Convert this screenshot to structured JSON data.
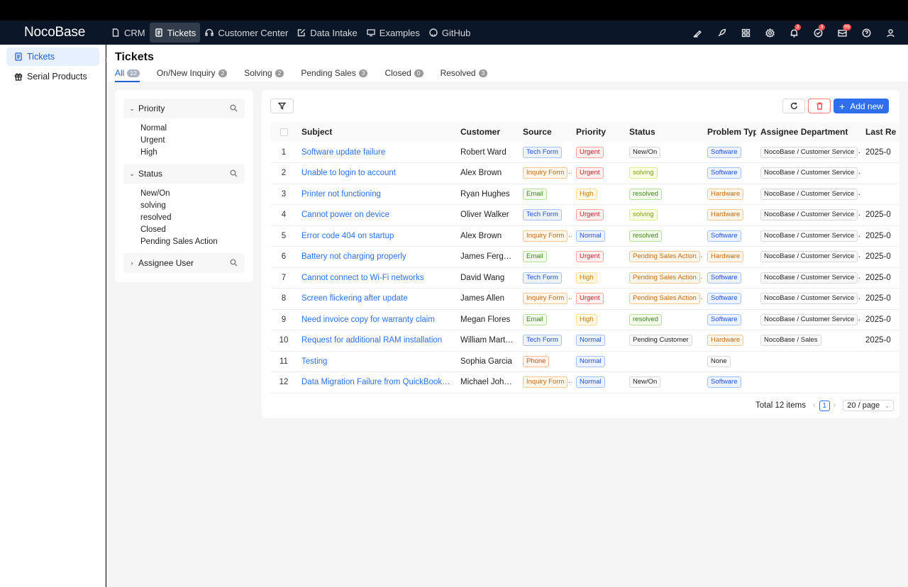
{
  "app": {
    "logo": "NocoBase"
  },
  "topnav": {
    "items": [
      {
        "label": "CRM",
        "icon": "file-icon"
      },
      {
        "label": "Tickets",
        "icon": "file-text-icon",
        "active": true
      },
      {
        "label": "Customer Center",
        "icon": "headset-icon"
      },
      {
        "label": "Data Intake",
        "icon": "edit-icon"
      },
      {
        "label": "Examples",
        "icon": "desktop-icon"
      },
      {
        "label": "GitHub",
        "icon": "github-icon"
      }
    ],
    "right_icons": [
      {
        "name": "highlight-icon"
      },
      {
        "name": "rocket-icon"
      },
      {
        "name": "apps-icon"
      },
      {
        "name": "settings-icon"
      },
      {
        "name": "bell-icon",
        "badge": "3"
      },
      {
        "name": "check-circle-icon",
        "badge": "3"
      },
      {
        "name": "mail-icon",
        "badge": "99"
      },
      {
        "name": "help-icon"
      },
      {
        "name": "user-icon"
      }
    ]
  },
  "sidebar": {
    "items": [
      {
        "label": "Tickets",
        "icon": "file-text-icon",
        "active": true
      },
      {
        "label": "Serial Products",
        "icon": "gift-icon"
      }
    ]
  },
  "page": {
    "title": "Tickets",
    "tabs": [
      {
        "label": "All",
        "count": "12",
        "active": true
      },
      {
        "label": "On/New Inquiry",
        "count": "2"
      },
      {
        "label": "Solving",
        "count": "2"
      },
      {
        "label": "Pending Sales",
        "count": "3"
      },
      {
        "label": "Closed",
        "count": "0"
      },
      {
        "label": "Resolved",
        "count": "3"
      }
    ]
  },
  "filters": {
    "groups": [
      {
        "label": "Priority",
        "expanded": true,
        "options": [
          "Normal",
          "Urgent",
          "High"
        ]
      },
      {
        "label": "Status",
        "expanded": true,
        "options": [
          "New/On",
          "solving",
          "resolved",
          "Closed",
          "Pending Sales Action"
        ]
      },
      {
        "label": "Assignee User",
        "expanded": false,
        "options": []
      }
    ]
  },
  "toolbar": {
    "add_label": "Add new"
  },
  "table": {
    "columns": [
      "Subject",
      "Customer",
      "Source",
      "Priority",
      "Status",
      "Problem Type",
      "Assignee Department",
      "Last Re"
    ],
    "rows": [
      {
        "no": "1",
        "subject": "Software update failure",
        "customer": "Robert Ward",
        "source": "Tech Form",
        "priority": "Urgent",
        "status": "New/On",
        "problem": "Software",
        "dept": "NocoBase / Customer Service",
        "last": "2025-0"
      },
      {
        "no": "2",
        "subject": "Unable to login to account",
        "customer": "Alex Brown",
        "source": "Inquiry Form",
        "priority": "Urgent",
        "status": "solving",
        "problem": "Software",
        "dept": "NocoBase / Customer Service",
        "last": ""
      },
      {
        "no": "3",
        "subject": "Printer not functioning",
        "customer": "Ryan Hughes",
        "source": "Email",
        "priority": "High",
        "status": "resolved",
        "problem": "Hardware",
        "dept": "NocoBase / Customer Service",
        "last": ""
      },
      {
        "no": "4",
        "subject": "Cannot power on device",
        "customer": "Oliver Walker",
        "source": "Tech Form",
        "priority": "Urgent",
        "status": "solving",
        "problem": "Hardware",
        "dept": "NocoBase / Customer Service",
        "last": "2025-0"
      },
      {
        "no": "5",
        "subject": "Error code 404 on startup",
        "customer": "Alex Brown",
        "source": "Inquiry Form",
        "priority": "Normal",
        "status": "resolved",
        "problem": "Software",
        "dept": "NocoBase / Customer Service",
        "last": "2025-0"
      },
      {
        "no": "6",
        "subject": "Battery not charging properly",
        "customer": "James Ferguson",
        "source": "Email",
        "priority": "Urgent",
        "status": "Pending Sales Action",
        "problem": "Hardware",
        "dept": "NocoBase / Customer Service",
        "last": "2025-0"
      },
      {
        "no": "7",
        "subject": "Cannot connect to Wi-Fi networks",
        "customer": "David Wang",
        "source": "Tech Form",
        "priority": "High",
        "status": "Pending Sales Action",
        "problem": "Software",
        "dept": "NocoBase / Customer Service",
        "last": "2025-0"
      },
      {
        "no": "8",
        "subject": "Screen flickering after update",
        "customer": "James Allen",
        "source": "Inquiry Form",
        "priority": "Urgent",
        "status": "Pending Sales Action",
        "problem": "Software",
        "dept": "NocoBase / Customer Service",
        "last": "2025-0"
      },
      {
        "no": "9",
        "subject": "Need invoice copy for warranty claim",
        "customer": "Megan Flores",
        "source": "Email",
        "priority": "High",
        "status": "resolved",
        "problem": "Software",
        "dept": "NocoBase / Customer Service",
        "last": "2025-0"
      },
      {
        "no": "10",
        "subject": "Request for additional RAM installation",
        "customer": "William Martinez",
        "source": "Tech Form",
        "priority": "Normal",
        "status": "Pending Customer",
        "problem": "Hardware",
        "dept": "NocoBase / Sales",
        "last": "2025-0"
      },
      {
        "no": "11",
        "subject": "Testing",
        "customer": "Sophia Garcia",
        "source": "Phone",
        "priority": "Normal",
        "status": "",
        "problem": "None",
        "dept": "",
        "last": ""
      },
      {
        "no": "12",
        "subject": "Data Migration Failure from QuickBooks to …",
        "customer": "Michael Johnson",
        "source": "Inquiry Form",
        "priority": "Normal",
        "status": "New/On",
        "problem": "Software",
        "dept": "",
        "last": ""
      }
    ]
  },
  "pagination": {
    "total": "Total 12 items",
    "page": "1",
    "page_size": "20 / page"
  },
  "colors": {
    "primary": "#2f6fed",
    "topbar": "#0b1729",
    "danger": "#ff4d4f"
  }
}
